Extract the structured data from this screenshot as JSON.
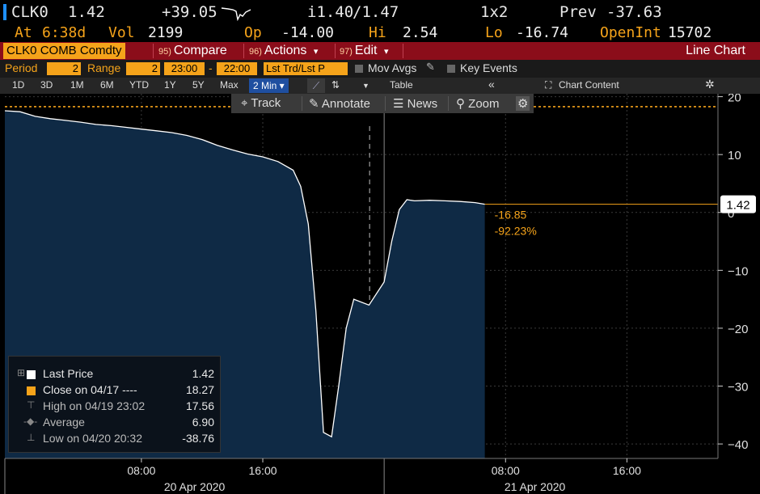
{
  "header": {
    "ticker": "CLK0",
    "last": "1.42",
    "change": "+39.05",
    "bid": "i1.40",
    "ask": "/1.47",
    "size": "1x2",
    "prev_label": "Prev",
    "prev": "-37.63",
    "at_label": "At",
    "at_time": "6:38d",
    "vol_label": "Vol",
    "vol": "2199",
    "op_label": "Op",
    "op": "-14.00",
    "hi_label": "Hi",
    "hi": "2.54",
    "lo_label": "Lo",
    "lo": "-16.74",
    "oi_label": "OpenInt",
    "oi": "15702"
  },
  "commandbar": {
    "security": "CLK0 COMB Comdty",
    "compare_num": "95)",
    "compare": "Compare",
    "actions_num": "96)",
    "actions": "Actions",
    "edit_num": "97)",
    "edit": "Edit",
    "caret": "▾",
    "title": "Line Chart"
  },
  "period": {
    "period_label": "Period",
    "period_value": "2",
    "range_label": "Range",
    "range_value": "2",
    "start_time": "23:00",
    "dash": "-",
    "end_time": "22:00",
    "lst_label": "Lst Trd/Lst P",
    "mov_avgs": "Mov Avgs",
    "key_events": "Key Events"
  },
  "ranges": {
    "items": [
      "1D",
      "3D",
      "1M",
      "6M",
      "YTD",
      "1Y",
      "5Y",
      "Max"
    ],
    "selected": "2 Min",
    "table": "Table",
    "collapse": "«",
    "chart_content": "Chart Content"
  },
  "toolbar": {
    "track": "Track",
    "annotate": "Annotate",
    "news": "News",
    "zoom": "Zoom"
  },
  "legend": {
    "items": [
      {
        "name": "Last Price",
        "value": "1.42",
        "color": "#ffffff"
      },
      {
        "name": "Close on 04/17 ----",
        "value": "18.27",
        "color": "#f5a31a"
      },
      {
        "name": "High on 04/19 23:02",
        "value": "17.56",
        "color": "#888888"
      },
      {
        "name": "Average",
        "value": "6.90",
        "color": "#888888"
      },
      {
        "name": "Low on 04/20 20:32",
        "value": "-38.76",
        "color": "#888888"
      }
    ]
  },
  "annotations": {
    "change_abs": "-16.85",
    "change_pct": "-92.23%",
    "last_tag": "1.42"
  },
  "colors": {
    "line": "#ffffff",
    "fill": "#0f2a45",
    "close_line": "#f5a31a",
    "last_line": "#f5a31a",
    "grid": "#3a3a3a",
    "axis_text": "#e0e0e0"
  },
  "chart_data": {
    "type": "area",
    "series": [
      {
        "name": "Last Price",
        "x": [
          "04/19 23:00",
          "04/20 00:00",
          "04/20 01:00",
          "04/20 02:00",
          "04/20 03:00",
          "04/20 04:00",
          "04/20 05:00",
          "04/20 06:00",
          "04/20 07:00",
          "04/20 08:00",
          "04/20 09:00",
          "04/20 10:00",
          "04/20 11:00",
          "04/20 12:00",
          "04/20 13:00",
          "04/20 14:00",
          "04/20 15:00",
          "04/20 16:00",
          "04/20 17:00",
          "04/20 18:00",
          "04/20 18:30",
          "04/20 19:00",
          "04/20 19:30",
          "04/20 20:00",
          "04/20 20:32",
          "04/20 21:00",
          "04/20 21:30",
          "04/20 22:00",
          "04/20 23:00",
          "04/21 00:00",
          "04/21 00:30",
          "04/21 01:00",
          "04/21 01:30",
          "04/21 02:00",
          "04/21 03:00",
          "04/21 04:00",
          "04/21 05:00",
          "04/21 06:00",
          "04/21 06:38"
        ],
        "values": [
          17.56,
          17.4,
          16.6,
          16.2,
          15.9,
          15.6,
          15.2,
          15.0,
          14.7,
          14.4,
          14.1,
          13.8,
          13.3,
          12.6,
          11.6,
          10.8,
          10.1,
          9.6,
          8.8,
          7.3,
          4.5,
          -2,
          -17,
          -38,
          -38.76,
          -30,
          -20,
          -15,
          -16,
          -12,
          -5,
          0.5,
          2.2,
          2.0,
          2.1,
          2.0,
          1.9,
          1.7,
          1.42
        ]
      }
    ],
    "close_04_17": 18.27,
    "high": {
      "label": "04/19 23:02",
      "value": 17.56
    },
    "low": {
      "label": "04/20 20:32",
      "value": -38.76
    },
    "average": 6.9,
    "last": 1.42,
    "x_ticks": [
      "08:00",
      "16:00",
      "08:00",
      "16:00"
    ],
    "x_dates": [
      "20 Apr 2020",
      "21 Apr 2020"
    ],
    "y_ticks": [
      20,
      10,
      0,
      -10,
      -20,
      -30,
      -40
    ],
    "ylim": [
      -42.5,
      20.5
    ],
    "xlim": [
      "04/19 23:00",
      "04/21 22:00"
    ],
    "grid": true
  }
}
